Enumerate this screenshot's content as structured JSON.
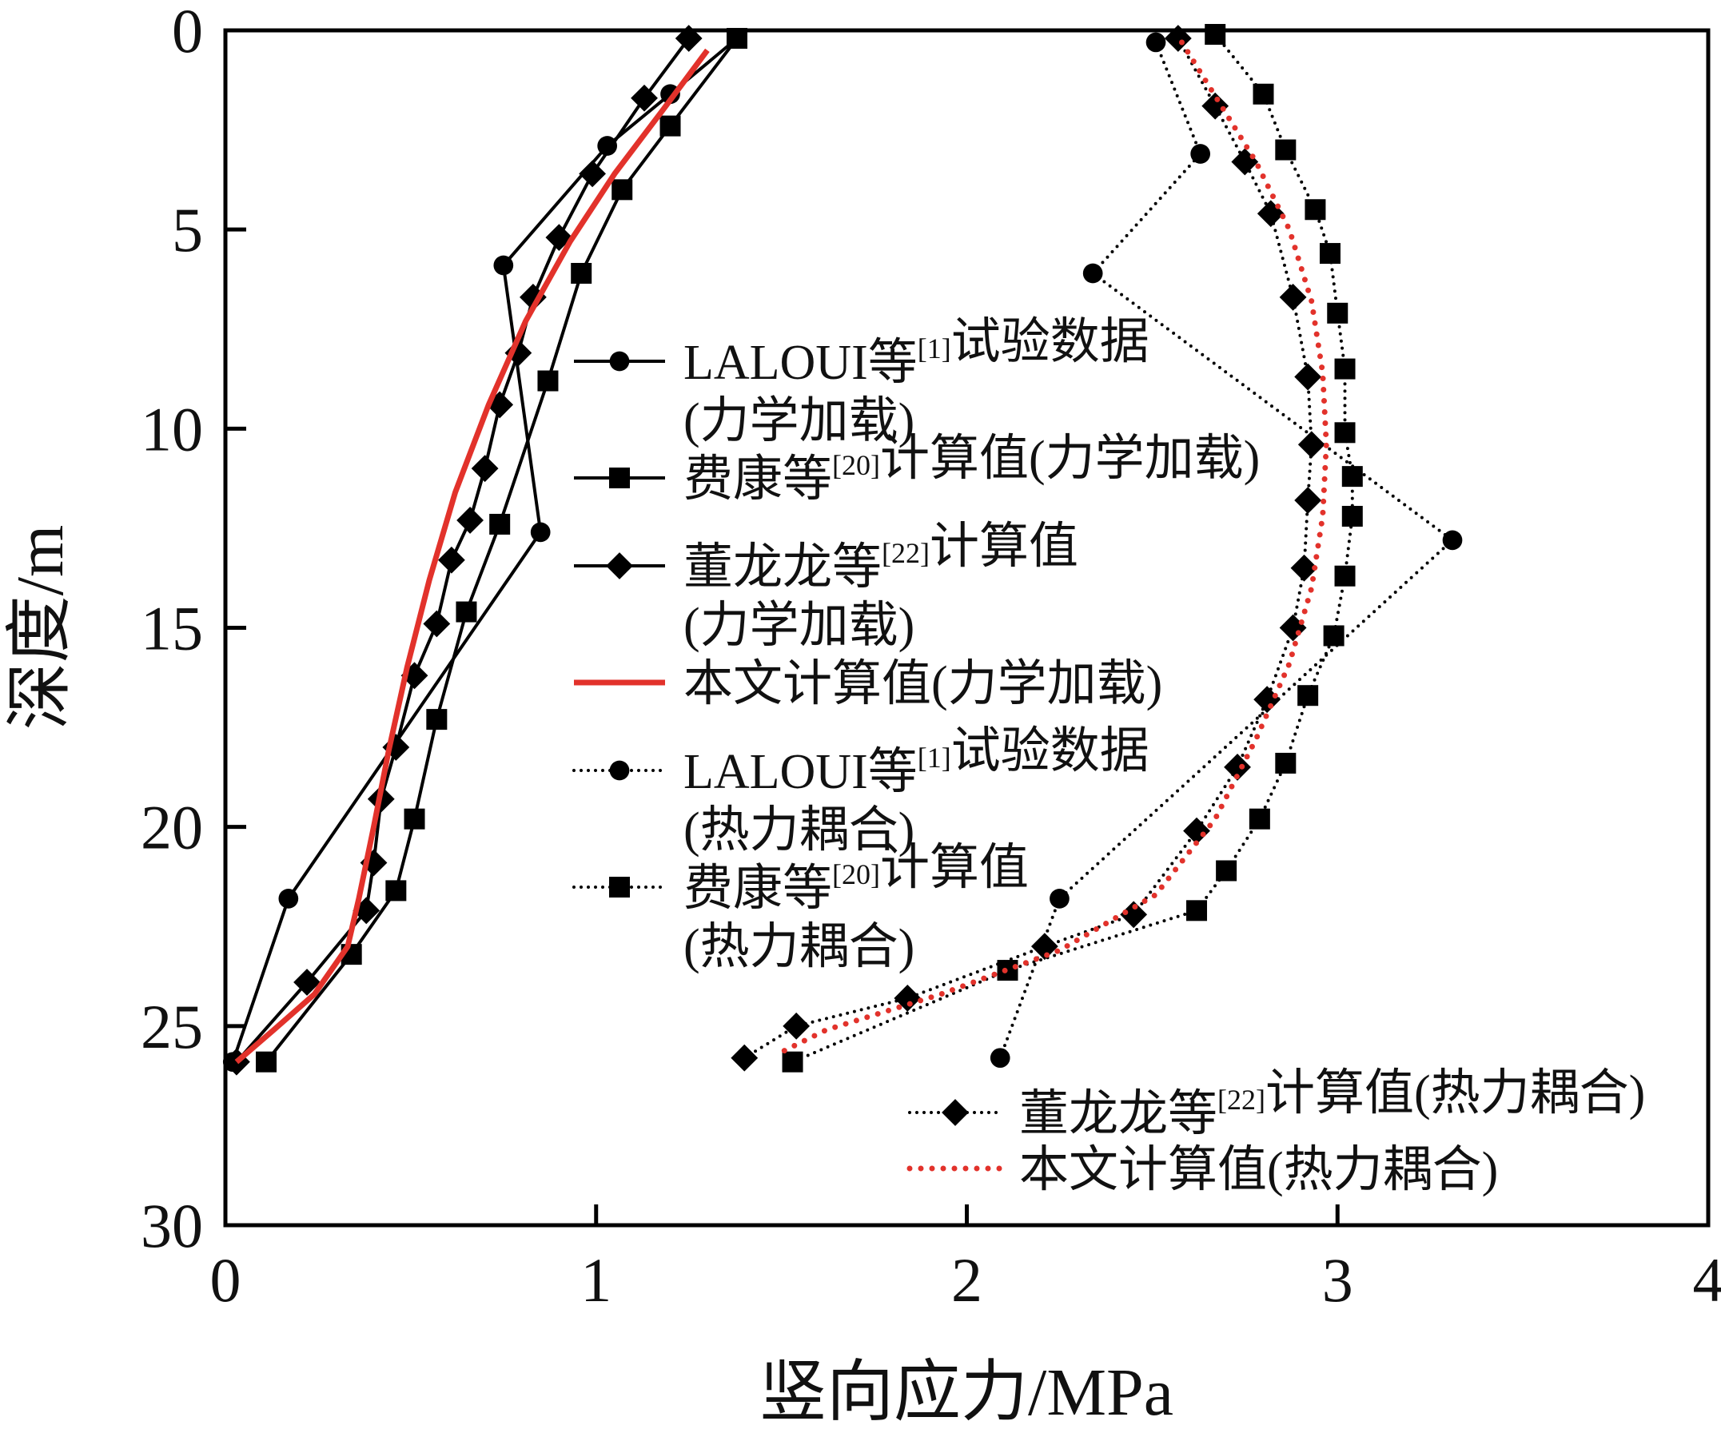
{
  "chart_data": {
    "type": "line",
    "xlabel": "竖向应力/MPa",
    "ylabel": "深度/m",
    "xlim": [
      0,
      4
    ],
    "ylim": [
      30,
      0
    ],
    "y_inverted": true,
    "xticks": [
      "0",
      "1",
      "2",
      "3",
      "4"
    ],
    "yticks": [
      "0",
      "5",
      "10",
      "15",
      "20",
      "25",
      "30"
    ],
    "grid": false,
    "colors": {
      "black": "#000000",
      "red": "#e2322b"
    },
    "series": [
      {
        "name": "LALOUI等[1]试验数据(力学加载)",
        "legend": [
          "LALOUI等",
          "[1]",
          "试验数据",
          "(力学加载)"
        ],
        "line": "solid",
        "marker": "circle",
        "color": "#000000",
        "x": [
          1.38,
          1.2,
          1.03,
          0.75,
          0.85,
          0.17,
          0.02
        ],
        "y": [
          0.2,
          1.6,
          2.9,
          5.9,
          12.6,
          21.8,
          25.9
        ]
      },
      {
        "name": "费康等[20]计算值(力学加载)",
        "legend": [
          "费康等",
          "[20]",
          "计算值(力学加载)"
        ],
        "line": "solid",
        "marker": "square",
        "color": "#000000",
        "x": [
          1.38,
          1.2,
          1.07,
          0.96,
          0.87,
          0.74,
          0.65,
          0.57,
          0.51,
          0.46,
          0.34,
          0.11
        ],
        "y": [
          0.2,
          2.4,
          4.0,
          6.1,
          8.8,
          12.4,
          14.6,
          17.3,
          19.8,
          21.6,
          23.2,
          25.9
        ]
      },
      {
        "name": "董龙龙等[22]计算值(力学加载)",
        "legend": [
          "董龙龙等",
          "[22]",
          "计算值",
          "(力学加载)"
        ],
        "line": "solid",
        "marker": "diamond",
        "color": "#000000",
        "x": [
          1.25,
          1.13,
          0.99,
          0.9,
          0.83,
          0.79,
          0.74,
          0.7,
          0.66,
          0.61,
          0.57,
          0.51,
          0.46,
          0.42,
          0.4,
          0.38,
          0.22,
          0.03
        ],
        "y": [
          0.2,
          1.7,
          3.6,
          5.2,
          6.7,
          8.1,
          9.4,
          11.0,
          12.3,
          13.3,
          14.9,
          16.2,
          18.0,
          19.3,
          20.9,
          22.1,
          23.9,
          25.9
        ]
      },
      {
        "name": "本文计算值(力学加载)",
        "legend": [
          "本文计算值(力学加载)"
        ],
        "line": "solid",
        "marker": "none",
        "color": "#e2322b",
        "x": [
          1.3,
          1.18,
          1.05,
          0.93,
          0.81,
          0.71,
          0.62,
          0.55,
          0.49,
          0.44,
          0.4,
          0.36,
          0.33,
          0.24,
          0.13,
          0.03
        ],
        "y": [
          0.5,
          2.0,
          3.6,
          5.3,
          7.3,
          9.4,
          11.6,
          13.8,
          16.0,
          18.1,
          20.0,
          21.8,
          23.0,
          24.2,
          25.1,
          25.9
        ]
      },
      {
        "name": "LALOUI等[1]试验数据(热力耦合)",
        "legend": [
          "LALOUI等",
          "[1]",
          "试验数据",
          "(热力耦合)"
        ],
        "line": "dotted",
        "marker": "circle",
        "color": "#000000",
        "x": [
          2.51,
          2.63,
          2.34,
          3.31,
          2.25,
          2.09
        ],
        "y": [
          0.3,
          3.1,
          6.1,
          12.8,
          21.8,
          25.8
        ]
      },
      {
        "name": "费康等[20]计算值(热力耦合)",
        "legend": [
          "费康等",
          "[20]",
          "计算值",
          "(热力耦合)"
        ],
        "line": "dotted",
        "marker": "square",
        "color": "#000000",
        "x": [
          2.67,
          2.8,
          2.86,
          2.94,
          2.98,
          3.0,
          3.02,
          3.02,
          3.04,
          3.04,
          3.02,
          2.99,
          2.92,
          2.86,
          2.79,
          2.7,
          2.62,
          2.11,
          1.53
        ],
        "y": [
          0.1,
          1.6,
          3.0,
          4.5,
          5.6,
          7.1,
          8.5,
          10.1,
          11.2,
          12.2,
          13.7,
          15.2,
          16.7,
          18.4,
          19.8,
          21.1,
          22.1,
          23.6,
          25.9
        ]
      },
      {
        "name": "董龙龙等[22]计算值(热力耦合)",
        "legend": [
          "董龙龙等",
          "[22]",
          "计算值(热力耦合)"
        ],
        "line": "dotted",
        "marker": "diamond",
        "color": "#000000",
        "x": [
          2.57,
          2.67,
          2.75,
          2.82,
          2.88,
          2.92,
          2.93,
          2.92,
          2.91,
          2.88,
          2.81,
          2.73,
          2.62,
          2.45,
          2.21,
          1.84,
          1.54,
          1.4
        ],
        "y": [
          0.2,
          1.9,
          3.3,
          4.6,
          6.7,
          8.7,
          10.4,
          11.8,
          13.5,
          15.0,
          16.8,
          18.5,
          20.1,
          22.2,
          23.0,
          24.3,
          25.0,
          25.8
        ]
      },
      {
        "name": "本文计算值(热力耦合)",
        "legend": [
          "本文计算值(热力耦合)"
        ],
        "line": "dotted",
        "marker": "none",
        "color": "#e2322b",
        "x": [
          2.58,
          2.68,
          2.78,
          2.87,
          2.93,
          2.96,
          2.97,
          2.96,
          2.93,
          2.87,
          2.78,
          2.67,
          2.51,
          2.25,
          1.93,
          1.62,
          1.49
        ],
        "y": [
          0.3,
          1.8,
          3.3,
          5.0,
          6.8,
          8.6,
          10.4,
          12.2,
          14.0,
          15.9,
          17.8,
          19.8,
          21.7,
          23.1,
          24.2,
          25.1,
          25.7
        ]
      }
    ]
  }
}
